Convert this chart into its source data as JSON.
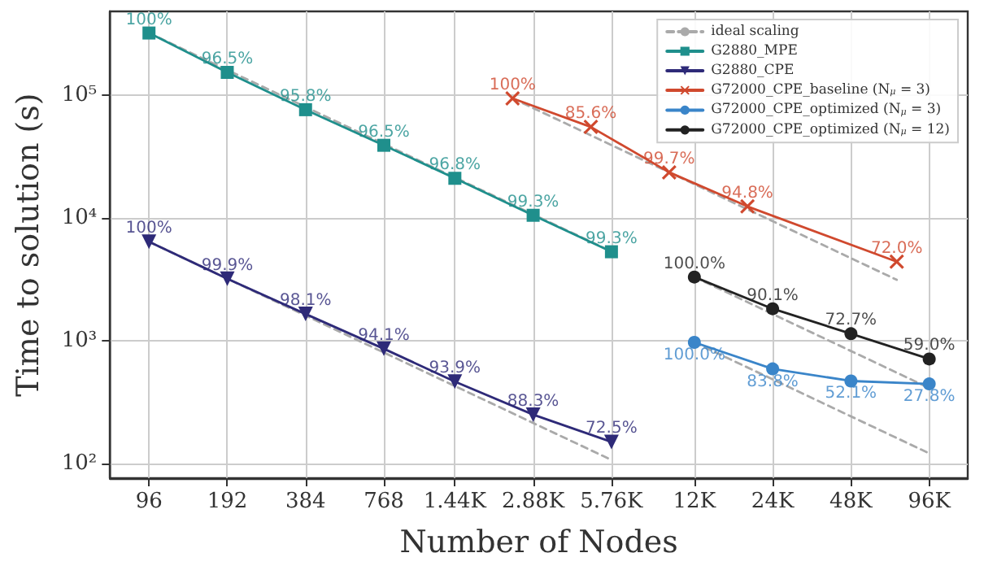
{
  "chart_data": {
    "type": "line",
    "xlabel": "Number of Nodes",
    "ylabel": "Time to solution (s)",
    "log": "xy",
    "grid": true,
    "legend": "top right",
    "xlim": [
      68,
      135000
    ],
    "xticks": [
      96,
      192,
      384,
      768,
      {
        "value": 1440,
        "label": "1.44K"
      },
      {
        "value": 2880,
        "label": "2.88K"
      },
      {
        "value": 5760,
        "label": "5.76K"
      },
      {
        "value": 12000,
        "label": "12K"
      },
      {
        "value": 24000,
        "label": "24K"
      },
      {
        "value": 48000,
        "label": "48K"
      },
      {
        "value": 96000,
        "label": "96K"
      }
    ],
    "ylim": [
      76,
      480000
    ],
    "yticks": [
      {
        "value": 100,
        "label": "10²"
      },
      {
        "value": 1000,
        "label": "10³"
      },
      {
        "value": 10000,
        "label": "10⁴"
      },
      {
        "value": 100000,
        "label": "10⁵"
      }
    ],
    "series": [
      {
        "name": "ideal scaling",
        "color": "#aaaaaa",
        "line_style": "dashed",
        "marker": "none",
        "x": [
          96,
          5760
        ],
        "values": [
          320000,
          5333
        ]
      },
      {
        "color": "#aaaaaa",
        "line_style": "dashed",
        "marker": "none",
        "x": [
          96,
          5760
        ],
        "values": [
          6400,
          107
        ]
      },
      {
        "color": "#aaaaaa",
        "line_style": "dashed",
        "marker": "none",
        "x": [
          2400,
          72000
        ],
        "values": [
          94000,
          3133
        ]
      },
      {
        "color": "#aaaaaa",
        "line_style": "dashed",
        "marker": "none",
        "x": [
          12000,
          96000
        ],
        "values": [
          970,
          121
        ]
      },
      {
        "color": "#aaaaaa",
        "line_style": "dashed",
        "marker": "none",
        "x": [
          12000,
          96000
        ],
        "values": [
          3300,
          412
        ]
      },
      {
        "name": "G2880_MPE",
        "color": "#1f8f8c",
        "line_style": "solid",
        "marker": "square",
        "x": [
          96,
          192,
          384,
          768,
          1440,
          2880,
          5760
        ],
        "values": [
          320000,
          153000,
          76000,
          39000,
          21000,
          10500,
          5300
        ]
      },
      {
        "name": "G2880_CPE",
        "color": "#2e2a78",
        "line_style": "solid",
        "marker": "triangle",
        "x": [
          96,
          192,
          384,
          768,
          1440,
          2880,
          5760
        ],
        "values": [
          6400,
          3200,
          1650,
          860,
          465,
          250,
          150
        ]
      },
      {
        "name": "G72000_CPE_baseline (N$_{μ}$ = 3)",
        "color": "#d0492e",
        "line_style": "solid",
        "marker": "cross",
        "x": [
          2400,
          4800,
          9600,
          19200,
          72000
        ],
        "values": [
          94000,
          55000,
          23500,
          12400,
          4400
        ]
      },
      {
        "name": "G72000_CPE_optimized (N$_{μ}$ = 3)",
        "color": "#3a85c9",
        "line_style": "solid",
        "marker": "circle",
        "x": [
          12000,
          24000,
          48000,
          96000
        ],
        "values": [
          970,
          590,
          470,
          445
        ]
      },
      {
        "name": "G72000_CPE_optimized (N$_{μ}$ = 12)",
        "color": "#222222",
        "line_style": "solid",
        "marker": "circle",
        "x": [
          12000,
          24000,
          48000,
          96000
        ],
        "values": [
          3300,
          1820,
          1140,
          710
        ]
      }
    ],
    "annotations": [
      {
        "text": "100%",
        "x": 96,
        "y": 320000
      },
      {
        "text": "96.5%",
        "x": 192,
        "y": 153000
      },
      {
        "text": "95.8%",
        "x": 384,
        "y": 76000
      },
      {
        "text": "96.5%",
        "x": 768,
        "y": 39000
      },
      {
        "text": "96.8%",
        "x": 1440,
        "y": 21000
      },
      {
        "text": "99.3%",
        "x": 2880,
        "y": 10500
      },
      {
        "text": "99.3%",
        "x": 5760,
        "y": 5300
      },
      {
        "text": "100%",
        "x": 96,
        "y": 6400
      },
      {
        "text": "99.9%",
        "x": 192,
        "y": 3200
      },
      {
        "text": "98.1%",
        "x": 384,
        "y": 1650
      },
      {
        "text": "94.1%",
        "x": 768,
        "y": 860
      },
      {
        "text": "93.9%",
        "x": 1440,
        "y": 465
      },
      {
        "text": "88.3%",
        "x": 2880,
        "y": 250
      },
      {
        "text": "72.5%",
        "x": 5760,
        "y": 150
      },
      {
        "text": "100%",
        "x": 2400,
        "y": 94000
      },
      {
        "text": "85.6%",
        "x": 4800,
        "y": 55000
      },
      {
        "text": "99.7%",
        "x": 9600,
        "y": 23500
      },
      {
        "text": "94.8%",
        "x": 19200,
        "y": 12400
      },
      {
        "text": "72.0%",
        "x": 72000,
        "y": 4400
      },
      {
        "text": "100.0%",
        "x": 12000,
        "y": 970
      },
      {
        "text": "83.8%",
        "x": 24000,
        "y": 590
      },
      {
        "text": "52.1%",
        "x": 48000,
        "y": 470
      },
      {
        "text": "27.8%",
        "x": 96000,
        "y": 445
      },
      {
        "text": "100.0%",
        "x": 12000,
        "y": 3300
      },
      {
        "text": "90.1%",
        "x": 24000,
        "y": 1820
      },
      {
        "text": "72.7%",
        "x": 48000,
        "y": 1140
      },
      {
        "text": "59.0%",
        "x": 96000,
        "y": 710
      }
    ]
  }
}
